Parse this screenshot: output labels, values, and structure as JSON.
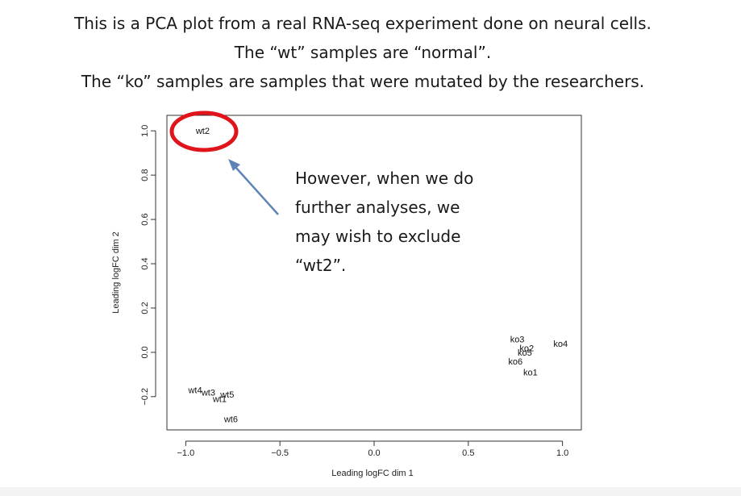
{
  "slide": {
    "title_lines": [
      "This is a PCA plot from a real RNA-seq experiment done on neural cells.",
      "The “wt” samples are “normal”.",
      "The “ko” samples are samples that were mutated by the researchers."
    ],
    "callout_text": "However, when we do\nfurther analyses, we\nmay wish to exclude\n“wt2”.",
    "highlight_color": "#e0141b",
    "arrow_color": "#5f84b8"
  },
  "chart_data": {
    "type": "scatter",
    "xlabel": "Leading logFC dim 1",
    "ylabel": "Leading logFC dim 2",
    "xlim": [
      -1.1,
      1.1
    ],
    "ylim": [
      -0.35,
      1.07
    ],
    "xticks": [
      -1.0,
      -0.5,
      0.0,
      0.5,
      1.0
    ],
    "xtick_labels": [
      "−1.0",
      "−0.5",
      "0.0",
      "0.5",
      "1.0"
    ],
    "yticks": [
      -0.2,
      0.0,
      0.2,
      0.4,
      0.6,
      0.8,
      1.0
    ],
    "ytick_labels": [
      "−0.2",
      "0.0",
      "0.2",
      "0.4",
      "0.6",
      "0.8",
      "1.0"
    ],
    "points": [
      {
        "label": "wt2",
        "x": -0.91,
        "y": 1.0
      },
      {
        "label": "wt4",
        "x": -0.95,
        "y": -0.17
      },
      {
        "label": "wt3",
        "x": -0.88,
        "y": -0.18
      },
      {
        "label": "wt5",
        "x": -0.78,
        "y": -0.19
      },
      {
        "label": "wt1",
        "x": -0.82,
        "y": -0.21
      },
      {
        "label": "wt6",
        "x": -0.76,
        "y": -0.3
      },
      {
        "label": "ko3",
        "x": 0.76,
        "y": 0.06
      },
      {
        "label": "ko4",
        "x": 0.99,
        "y": 0.04
      },
      {
        "label": "ko2",
        "x": 0.81,
        "y": 0.02
      },
      {
        "label": "ko5",
        "x": 0.8,
        "y": 0.0
      },
      {
        "label": "ko6",
        "x": 0.75,
        "y": -0.04
      },
      {
        "label": "ko1",
        "x": 0.83,
        "y": -0.09
      }
    ],
    "highlight": "wt2",
    "grid": false
  }
}
